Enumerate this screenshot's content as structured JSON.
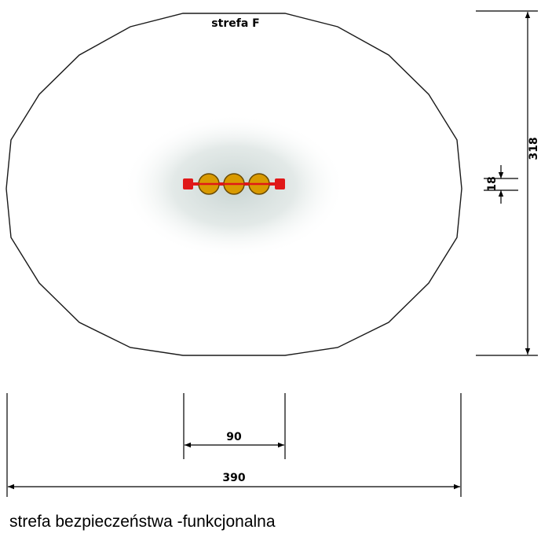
{
  "zone_label": "strefa F",
  "dimensions": {
    "total_width": "390",
    "equipment_width": "90",
    "total_height": "318",
    "equipment_height": "18"
  },
  "caption": "strefa bezpieczeństwa -funkcjonalna",
  "equipment": {
    "circle_count": 3,
    "colors": {
      "circle_fill": "#D99A00",
      "circle_stroke": "#6B4B00",
      "bar": "#E01818",
      "shadow": "#C8D4D2"
    }
  }
}
